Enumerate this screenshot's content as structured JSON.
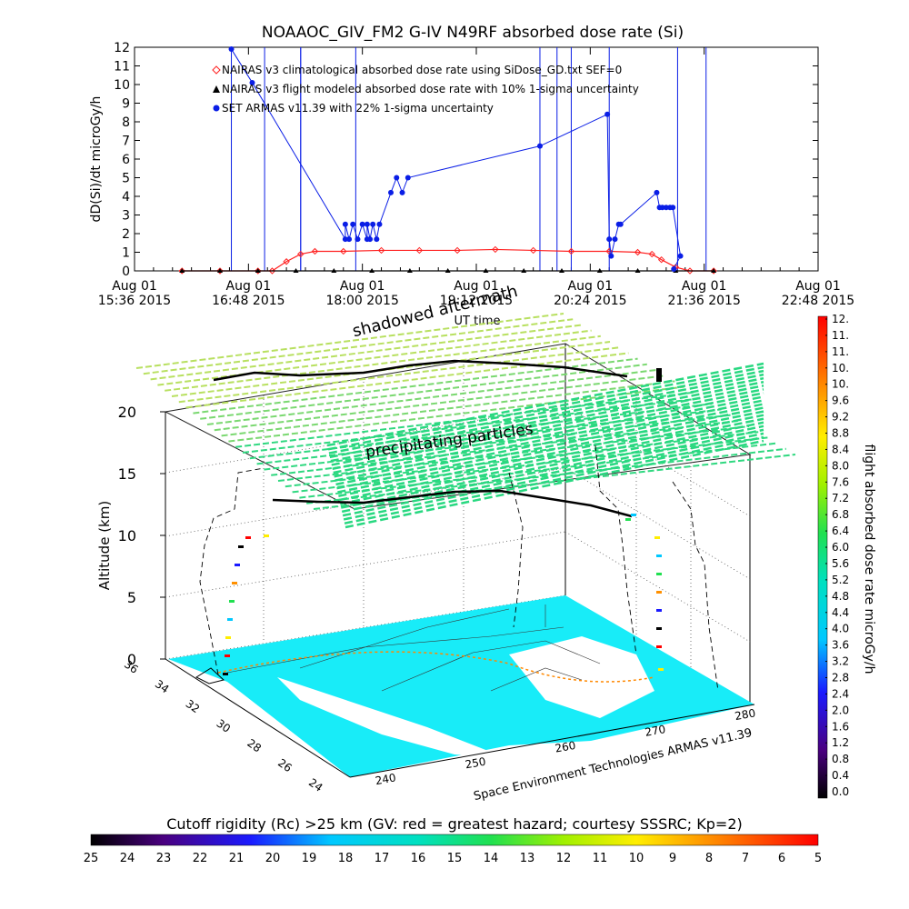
{
  "title": "NOAAOC_GIV_FM2 G-IV    N49RF  absorbed dose rate (Si)",
  "colors": {
    "series_climatological": "#ff2020",
    "series_flight_modeled": "#000000",
    "series_armas": "#0a1ee6",
    "land_cyan": "#18ecf8",
    "grid": "#000000"
  },
  "chart_data": [
    {
      "type": "line",
      "title": "NOAAOC_GIV_FM2 G-IV    N49RF  absorbed dose rate (Si)",
      "xlabel": "UT time",
      "ylabel": "dD(Si)/dt microGy/h",
      "ylim": [
        0,
        12
      ],
      "yticks": [
        "0",
        "1",
        "2",
        "3",
        "4",
        "5",
        "6",
        "7",
        "8",
        "9",
        "10",
        "11",
        "12"
      ],
      "xlim_hours": [
        15.6,
        22.8
      ],
      "xticks": [
        {
          "h": 15.6,
          "line1": "Aug 01",
          "line2": "15:36 2015"
        },
        {
          "h": 16.8,
          "line1": "Aug 01",
          "line2": "16:48 2015"
        },
        {
          "h": 18.0,
          "line1": "Aug 01",
          "line2": "18:00 2015"
        },
        {
          "h": 19.2,
          "line1": "Aug 01",
          "line2": "19:12 2015"
        },
        {
          "h": 20.4,
          "line1": "Aug 01",
          "line2": "20:24 2015"
        },
        {
          "h": 21.6,
          "line1": "Aug 01",
          "line2": "21:36 2015"
        },
        {
          "h": 22.8,
          "line1": "Aug 01",
          "line2": "22:48 2015"
        }
      ],
      "legend_position": "top-left",
      "series": [
        {
          "name": "NAIRAS v3 climatological absorbed dose rate using SiDose_GD.txt SEF=0",
          "marker": "diamond",
          "x": [
            16.1,
            16.5,
            16.9,
            17.05,
            17.2,
            17.35,
            17.5,
            17.8,
            18.2,
            18.6,
            19.0,
            19.4,
            19.8,
            20.2,
            20.6,
            20.9,
            21.05,
            21.15,
            21.3,
            21.45,
            21.7
          ],
          "y": [
            0,
            0,
            0,
            0,
            0.5,
            0.9,
            1.05,
            1.05,
            1.1,
            1.1,
            1.1,
            1.15,
            1.1,
            1.05,
            1.05,
            1.0,
            0.9,
            0.6,
            0.2,
            0,
            0
          ]
        },
        {
          "name": "NAIRAS v3 flight modeled absorbed dose rate with 10% 1-sigma uncertainty",
          "marker": "triangle",
          "x": [
            16.1,
            16.5,
            16.9,
            17.3,
            17.7,
            18.1,
            18.5,
            18.9,
            19.3,
            19.7,
            20.1,
            20.5,
            20.9,
            21.3,
            21.7
          ],
          "y": [
            0,
            0,
            0,
            0,
            0,
            0,
            0,
            0,
            0,
            0,
            0,
            0,
            0,
            0,
            0
          ]
        },
        {
          "name": "SET ARMAS v11.39 with 22% 1-sigma uncertainty",
          "marker": "circle",
          "x": [
            16.62,
            16.84,
            17.82,
            17.82,
            17.86,
            17.9,
            17.95,
            18.0,
            18.05,
            18.05,
            18.08,
            18.11,
            18.15,
            18.18,
            18.3,
            18.36,
            18.42,
            18.48,
            19.87,
            20.58,
            20.6,
            20.62,
            20.66,
            20.7,
            20.72,
            21.1,
            21.13,
            21.16,
            21.2,
            21.24,
            21.27,
            21.35,
            21.28
          ],
          "y": [
            11.9,
            10.1,
            1.7,
            2.5,
            1.7,
            2.5,
            1.7,
            2.5,
            1.7,
            2.5,
            1.7,
            2.5,
            1.7,
            2.5,
            4.2,
            5.0,
            4.2,
            5.0,
            6.7,
            8.4,
            1.7,
            0.8,
            1.7,
            2.5,
            2.5,
            4.2,
            3.4,
            3.4,
            3.4,
            3.4,
            3.4,
            0.8,
            0.1
          ]
        }
      ],
      "spikes_hours": [
        16.62,
        16.97,
        17.35,
        17.35,
        17.93,
        19.87,
        20.05,
        20.2,
        20.6,
        21.32,
        21.62
      ]
    },
    {
      "type": "scatter",
      "xlabel": "Space Environment Technologies ARMAS v11.39",
      "zlabel": "Altitude (km)",
      "zticks": [
        "0",
        "5",
        "10",
        "15",
        "20"
      ],
      "latitude_ticks": [
        "36",
        "34",
        "32",
        "30",
        "28",
        "26",
        "24"
      ],
      "longitude_ticks": [
        "240",
        "250",
        "260",
        "270",
        "280"
      ],
      "annotations": [
        "shadowed aftermath",
        "precipitating particles"
      ],
      "colorbar_label": "flight absorbed dose rate microGy/h",
      "colorbar_ticks": [
        "12.",
        "11.",
        "11.",
        "10.",
        "10.",
        "9.6",
        "9.2",
        "8.8",
        "8.4",
        "8.0",
        "7.6",
        "7.2",
        "6.8",
        "6.4",
        "6.0",
        "5.6",
        "5.2",
        "4.8",
        "4.4",
        "4.0",
        "3.6",
        "3.2",
        "2.8",
        "2.4",
        "2.0",
        "1.6",
        "1.2",
        "0.8",
        "0.4",
        "0.0"
      ]
    },
    {
      "type": "heatmap",
      "title": "Cutoff rigidity (Rc) >25 km (GV: red = greatest hazard; courtesy SSSRC; Kp=2)",
      "colorbar_ticks": [
        "25",
        "24",
        "23",
        "22",
        "21",
        "20",
        "19",
        "18",
        "17",
        "16",
        "15",
        "14",
        "13",
        "12",
        "11",
        "10",
        "9",
        "8",
        "7",
        "6",
        "5"
      ]
    }
  ]
}
